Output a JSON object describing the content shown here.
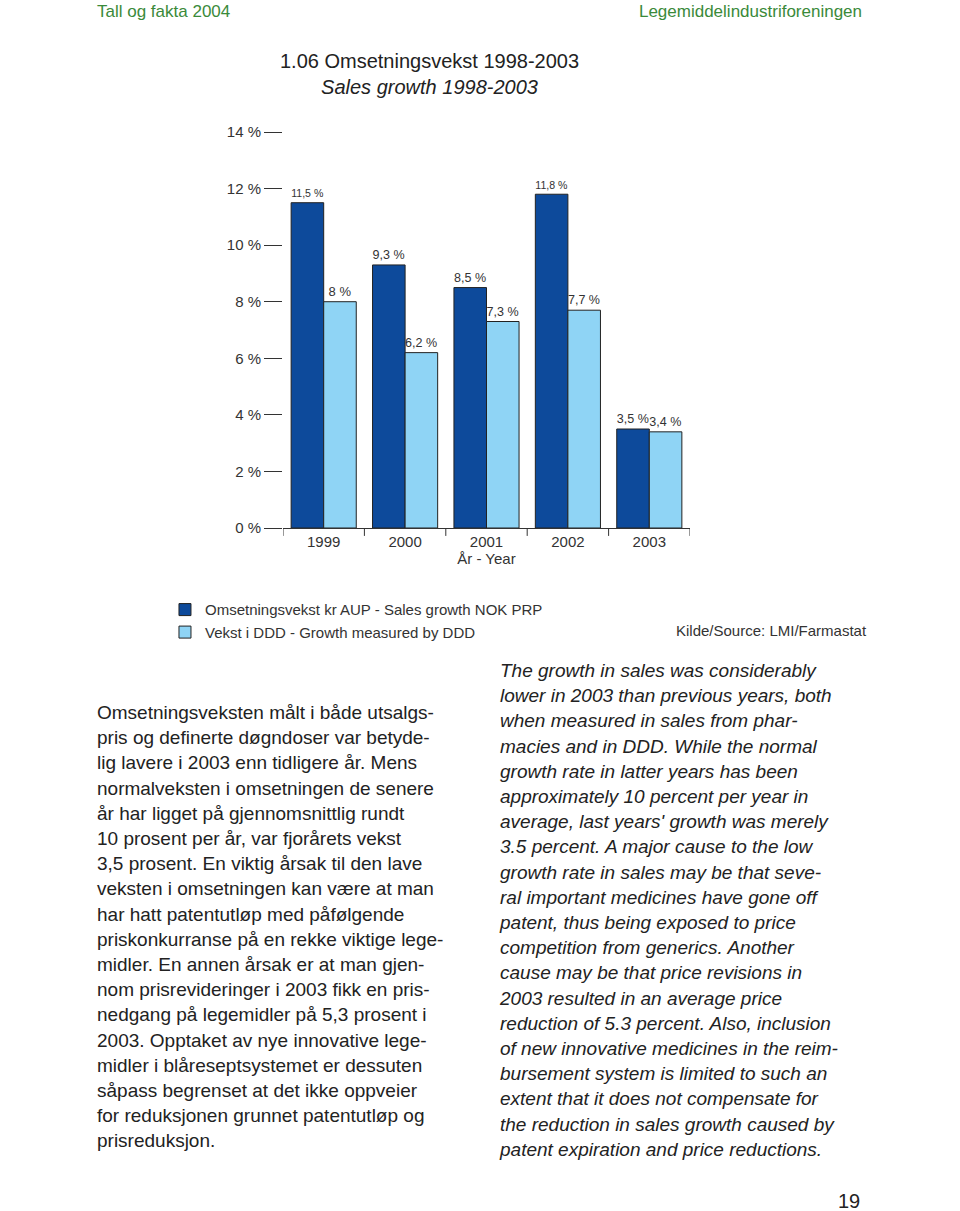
{
  "header": {
    "left": "Tall og fakta 2004",
    "right": "Legemiddelindustriforeningen"
  },
  "chart_data": {
    "type": "bar",
    "title": "1.06 Omsetningsvekst 1998-2003",
    "subtitle": "Sales growth 1998-2003",
    "x_label": "År - Year",
    "categories": [
      "1999",
      "2000",
      "2001",
      "2002",
      "2003"
    ],
    "series": [
      {
        "name": "Omsetningsvekst kr AUP - Sales growth NOK PRP",
        "color": "#0d4a9b",
        "values": [
          11.5,
          9.3,
          8.5,
          11.8,
          3.5
        ],
        "value_labels": [
          "11,5 %",
          "9,3 %",
          "8,5 %",
          "11,8 %",
          "3,5 %"
        ]
      },
      {
        "name": "Vekst i DDD - Growth measured by DDD",
        "color": "#8fd4f5",
        "values": [
          8,
          6.2,
          7.3,
          7.7,
          3.4
        ],
        "value_labels": [
          "8 %",
          "6,2 %",
          "7,3 %",
          "7,7 %",
          "3,4 %"
        ]
      }
    ],
    "ylim": [
      0,
      14
    ],
    "yticks": [
      {
        "value": 0,
        "label": "0 %"
      },
      {
        "value": 2,
        "label": "2 %"
      },
      {
        "value": 4,
        "label": "4 %"
      },
      {
        "value": 6,
        "label": "6 %"
      },
      {
        "value": 8,
        "label": "8 %"
      },
      {
        "value": 10,
        "label": "10 %"
      },
      {
        "value": 12,
        "label": "12 %"
      },
      {
        "value": 14,
        "label": "14 %"
      }
    ],
    "data_labels": true,
    "grid": false
  },
  "source": "Kilde/Source: LMI/Farmastat",
  "text_no": [
    "Omsetningsveksten målt i både utsalgs-",
    "pris og definerte døgndoser var betyde-",
    "lig lavere i 2003 enn tidligere år. Mens",
    "normalveksten i omsetningen de senere",
    "år har ligget på gjennomsnittlig rundt",
    "10 prosent per år, var fjorårets vekst",
    "3,5 prosent. En viktig årsak til den lave",
    "veksten i omsetningen kan være at man",
    "har hatt patentutløp med påfølgende",
    "priskonkurranse på en rekke viktige lege-",
    "midler. En annen årsak er at man gjen-",
    "nom prisrevideringer i 2003 fikk en pris-",
    "nedgang på legemidler på 5,3 prosent i",
    "2003. Opptaket av nye innovative lege-",
    "midler i blåreseptsystemet er dessuten",
    "såpass begrenset at det ikke oppveier",
    "for reduksjonen grunnet patentutløp og",
    "prisreduksjon."
  ],
  "text_en": [
    "The growth in sales was considerably",
    "lower in 2003 than previous years, both",
    "when measured in sales from phar-",
    "macies and in DDD. While the normal",
    "growth rate in latter years has been",
    "approximately 10 percent per year in",
    "average, last years' growth was merely",
    "3.5 percent. A major cause to the low",
    "growth rate in sales may be that seve-",
    "ral important medicines have gone off",
    "patent, thus being exposed to price",
    "competition from generics. Another",
    "cause may be that price revisions in",
    "2003 resulted in an average price",
    "reduction of 5.3 percent. Also, inclusion",
    "of new innovative medicines in the reim-",
    "bursement system is limited to such an",
    "extent that it does not compensate for",
    "the reduction in sales growth caused by",
    "patent expiration and price reductions."
  ],
  "page_number": "19"
}
